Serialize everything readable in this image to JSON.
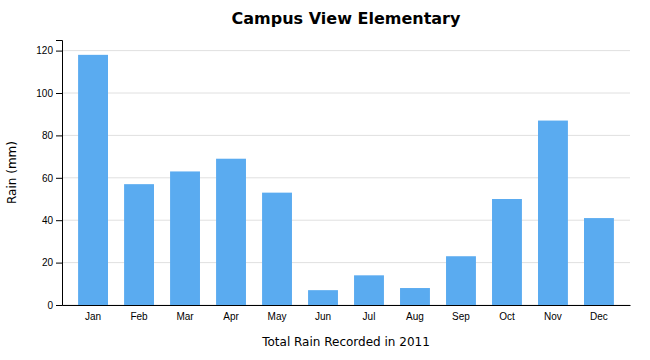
{
  "chart_data": {
    "type": "bar",
    "title": "Campus View Elementary",
    "xlabel": "Total Rain Recorded in 2011",
    "ylabel": "Rain (mm)",
    "categories": [
      "Jan",
      "Feb",
      "Mar",
      "Apr",
      "May",
      "Jun",
      "Jul",
      "Aug",
      "Sep",
      "Oct",
      "Nov",
      "Dec"
    ],
    "values": [
      118,
      57,
      63,
      69,
      53,
      7,
      14,
      8,
      23,
      50,
      87,
      41
    ],
    "color": "#5aabf0",
    "ylim": [
      0,
      125
    ],
    "yticks": [
      0,
      20,
      40,
      60,
      80,
      100,
      120
    ],
    "grid": true
  }
}
